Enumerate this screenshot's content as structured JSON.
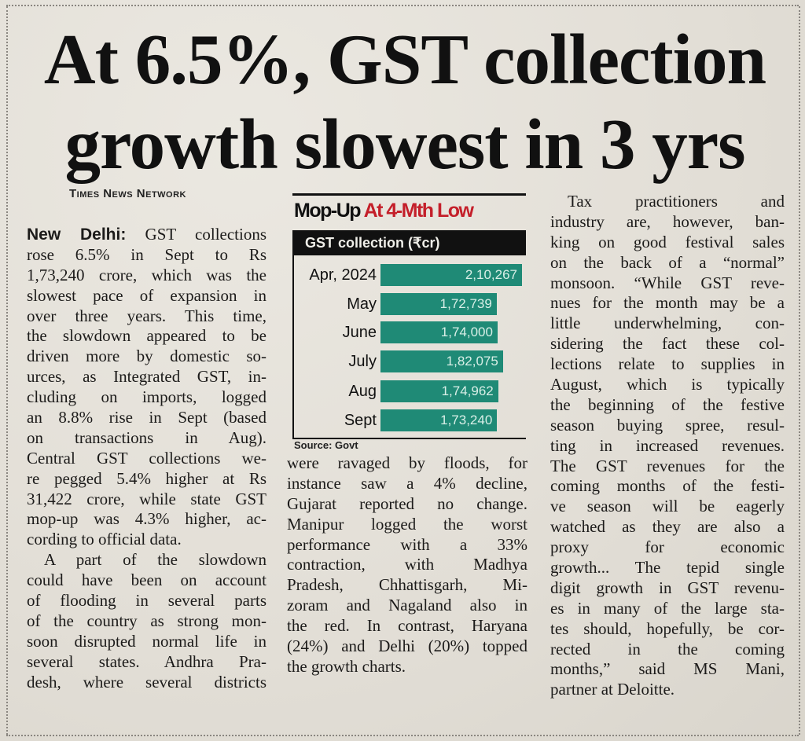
{
  "headline": {
    "line1": "At 6.5%, GST collection",
    "line2": "growth slowest in 3 yrs"
  },
  "byline": "Times News Network",
  "dateline": "New Delhi:",
  "columns": [
    {
      "paragraphs": [
        {
          "indent": false,
          "lines": [
            "GST collections",
            "rose 6.5% in Sept to Rs",
            "1,73,240 crore, which was the",
            "slowest pace of expansion in",
            "over three years. This time,",
            "the slowdown appeared to be",
            "driven more by domestic so-",
            "urces, as Integrated GST, in-",
            "cluding on imports, logged",
            "an 8.8% rise in Sept (based",
            "on transactions in Aug).",
            "Central GST collections we-",
            "re pegged 5.4% higher at Rs",
            "31,422 crore, while state GST",
            "mop-up was 4.3% higher, ac-",
            "cording to official data."
          ]
        },
        {
          "indent": true,
          "lines": [
            "A part of the slowdown",
            "could have been on account",
            "of flooding in several parts",
            "of the country as strong mon-",
            "soon disrupted normal life in",
            "several states. Andhra Pra-",
            "desh, where several districts"
          ],
          "continues": true
        }
      ]
    },
    {
      "paragraphs": [
        {
          "indent": false,
          "lines": [
            "were ravaged by floods, for",
            "instance saw a 4% decline,",
            "Gujarat reported no change.",
            "Manipur logged the worst",
            "performance with a 33%",
            "contraction, with Madhya",
            "Pradesh, Chhattisgarh, Mi-",
            "zoram and Nagaland also in",
            "the red. In contrast, Haryana",
            "(24%) and Delhi (20%) topped",
            "the growth charts."
          ]
        }
      ]
    },
    {
      "paragraphs": [
        {
          "indent": true,
          "lines": [
            "Tax practitioners and",
            "industry are, however, ban-",
            "king on good festival sales",
            "on the back of a “normal”",
            "monsoon. “While GST reve-",
            "nues for the month may be a",
            "little underwhelming, con-",
            "sidering the fact these col-",
            "lections relate to supplies in",
            "August, which is typically",
            "the beginning of the festive",
            "season buying spree, resul-",
            "ting in increased revenues.",
            "The GST revenues for the",
            "coming months of the festi-",
            "ve season will be eagerly",
            "watched as they are also a",
            "proxy for economic",
            "growth... The tepid single",
            "digit growth in GST revenu-",
            "es in many of the large sta-",
            "tes should, hopefully, be cor-",
            "rected in the coming",
            "months,” said MS Mani,",
            "partner at Deloitte."
          ]
        }
      ]
    }
  ],
  "chart_data": {
    "type": "bar",
    "orientation": "horizontal",
    "title": "Mop-Up",
    "title_highlight": "At 4-Mth Low",
    "subtitle": "GST collection (₹cr)",
    "categories": [
      "Apr, 2024",
      "May",
      "June",
      "July",
      "Aug",
      "Sept"
    ],
    "values": [
      210267,
      172739,
      174000,
      182075,
      174962,
      173240
    ],
    "value_labels": [
      "2,10,267",
      "1,72,739",
      "1,74,000",
      "1,82,075",
      "1,74,962",
      "1,73,240"
    ],
    "source": "Source: Govt",
    "colors": {
      "bar": "#1f8a76",
      "highlight": "#c41f2a",
      "header": "#111111"
    }
  }
}
